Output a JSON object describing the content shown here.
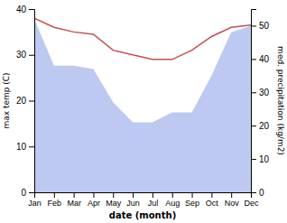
{
  "chart_data": {
    "type": "line",
    "categories": [
      "Jan",
      "Feb",
      "Mar",
      "Apr",
      "May",
      "Jun",
      "Jul",
      "Aug",
      "Sep",
      "Oct",
      "Nov",
      "Dec"
    ],
    "xlabel": "date (month)",
    "ylabel": "max temp (C)",
    "y2label": "med. precipitation  (kg/m2)",
    "ylim": [
      0,
      40
    ],
    "yticks": [
      0,
      10,
      20,
      30,
      40
    ],
    "y2lim": [
      0,
      55
    ],
    "y2ticks": [
      0,
      10,
      20,
      30,
      40,
      50
    ],
    "grid": false,
    "series": [
      {
        "type": "area",
        "axis": "y2",
        "color": "#bdc9f0",
        "values": [
          52,
          38,
          38,
          37,
          27,
          21,
          21,
          24,
          24,
          35,
          48,
          50
        ]
      },
      {
        "type": "line",
        "color": "#c0504d",
        "values": [
          38,
          36,
          35,
          34.5,
          31,
          30,
          29,
          29,
          31,
          34,
          36,
          36.5
        ]
      }
    ]
  }
}
